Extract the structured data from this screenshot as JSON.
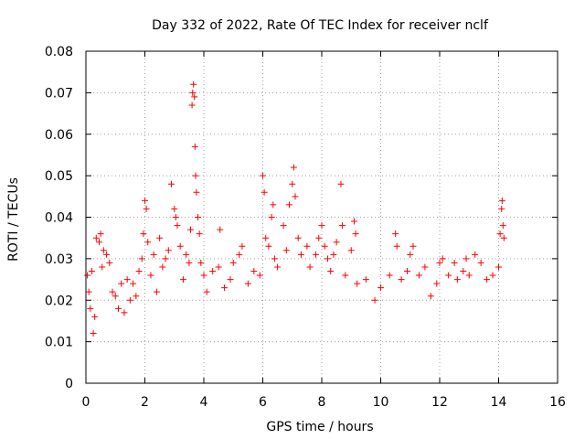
{
  "chart_data": {
    "type": "scatter",
    "title": "Day 332 of 2022, Rate Of TEC Index for receiver nclf",
    "xlabel": "GPS time / hours",
    "ylabel": "ROTI / TECUs",
    "xlim": [
      0,
      16
    ],
    "ylim": [
      0,
      0.08
    ],
    "x_ticks": [
      "0",
      "2",
      "4",
      "6",
      "8",
      "10",
      "12",
      "14",
      "16"
    ],
    "y_ticks": [
      "0",
      "0.01",
      "0.02",
      "0.03",
      "0.04",
      "0.05",
      "0.06",
      "0.07",
      "0.08"
    ],
    "grid": true,
    "marker": "+",
    "color": "#ff0000",
    "series": [
      {
        "name": "ROTI",
        "points": [
          [
            0.05,
            0.026
          ],
          [
            0.1,
            0.022
          ],
          [
            0.15,
            0.018
          ],
          [
            0.2,
            0.027
          ],
          [
            0.25,
            0.012
          ],
          [
            0.3,
            0.016
          ],
          [
            0.35,
            0.035
          ],
          [
            0.45,
            0.034
          ],
          [
            0.5,
            0.036
          ],
          [
            0.55,
            0.028
          ],
          [
            0.6,
            0.032
          ],
          [
            0.7,
            0.031
          ],
          [
            0.8,
            0.029
          ],
          [
            0.9,
            0.022
          ],
          [
            1.0,
            0.021
          ],
          [
            1.1,
            0.018
          ],
          [
            1.2,
            0.024
          ],
          [
            1.3,
            0.017
          ],
          [
            1.4,
            0.025
          ],
          [
            1.5,
            0.02
          ],
          [
            1.6,
            0.024
          ],
          [
            1.7,
            0.021
          ],
          [
            1.8,
            0.027
          ],
          [
            1.9,
            0.03
          ],
          [
            1.95,
            0.036
          ],
          [
            2.0,
            0.044
          ],
          [
            2.05,
            0.042
          ],
          [
            2.1,
            0.034
          ],
          [
            2.2,
            0.026
          ],
          [
            2.3,
            0.031
          ],
          [
            2.4,
            0.022
          ],
          [
            2.5,
            0.035
          ],
          [
            2.6,
            0.028
          ],
          [
            2.7,
            0.03
          ],
          [
            2.8,
            0.032
          ],
          [
            2.9,
            0.048
          ],
          [
            3.0,
            0.042
          ],
          [
            3.05,
            0.04
          ],
          [
            3.1,
            0.038
          ],
          [
            3.2,
            0.033
          ],
          [
            3.3,
            0.025
          ],
          [
            3.4,
            0.031
          ],
          [
            3.5,
            0.029
          ],
          [
            3.55,
            0.037
          ],
          [
            3.6,
            0.067
          ],
          [
            3.62,
            0.07
          ],
          [
            3.65,
            0.072
          ],
          [
            3.68,
            0.069
          ],
          [
            3.7,
            0.057
          ],
          [
            3.72,
            0.05
          ],
          [
            3.75,
            0.046
          ],
          [
            3.8,
            0.04
          ],
          [
            3.85,
            0.036
          ],
          [
            3.9,
            0.029
          ],
          [
            4.0,
            0.026
          ],
          [
            4.1,
            0.022
          ],
          [
            4.3,
            0.027
          ],
          [
            4.5,
            0.028
          ],
          [
            4.55,
            0.037
          ],
          [
            4.7,
            0.023
          ],
          [
            4.9,
            0.025
          ],
          [
            5.0,
            0.029
          ],
          [
            5.2,
            0.031
          ],
          [
            5.3,
            0.033
          ],
          [
            5.5,
            0.024
          ],
          [
            5.7,
            0.027
          ],
          [
            5.9,
            0.026
          ],
          [
            6.0,
            0.05
          ],
          [
            6.05,
            0.046
          ],
          [
            6.1,
            0.035
          ],
          [
            6.2,
            0.033
          ],
          [
            6.3,
            0.04
          ],
          [
            6.35,
            0.043
          ],
          [
            6.4,
            0.03
          ],
          [
            6.5,
            0.028
          ],
          [
            6.7,
            0.038
          ],
          [
            6.8,
            0.032
          ],
          [
            6.9,
            0.043
          ],
          [
            7.0,
            0.048
          ],
          [
            7.05,
            0.052
          ],
          [
            7.1,
            0.045
          ],
          [
            7.2,
            0.035
          ],
          [
            7.3,
            0.031
          ],
          [
            7.5,
            0.033
          ],
          [
            7.6,
            0.028
          ],
          [
            7.8,
            0.031
          ],
          [
            7.9,
            0.035
          ],
          [
            8.0,
            0.038
          ],
          [
            8.1,
            0.033
          ],
          [
            8.2,
            0.03
          ],
          [
            8.3,
            0.027
          ],
          [
            8.4,
            0.031
          ],
          [
            8.5,
            0.034
          ],
          [
            8.65,
            0.048
          ],
          [
            8.7,
            0.038
          ],
          [
            8.8,
            0.026
          ],
          [
            9.0,
            0.032
          ],
          [
            9.1,
            0.039
          ],
          [
            9.15,
            0.036
          ],
          [
            9.2,
            0.024
          ],
          [
            9.5,
            0.025
          ],
          [
            9.8,
            0.02
          ],
          [
            10.0,
            0.023
          ],
          [
            10.3,
            0.026
          ],
          [
            10.5,
            0.036
          ],
          [
            10.55,
            0.033
          ],
          [
            10.7,
            0.025
          ],
          [
            10.9,
            0.027
          ],
          [
            11.0,
            0.031
          ],
          [
            11.1,
            0.033
          ],
          [
            11.3,
            0.026
          ],
          [
            11.5,
            0.028
          ],
          [
            11.7,
            0.021
          ],
          [
            11.9,
            0.024
          ],
          [
            12.0,
            0.029
          ],
          [
            12.1,
            0.03
          ],
          [
            12.3,
            0.026
          ],
          [
            12.5,
            0.029
          ],
          [
            12.6,
            0.025
          ],
          [
            12.8,
            0.027
          ],
          [
            12.9,
            0.03
          ],
          [
            13.0,
            0.026
          ],
          [
            13.2,
            0.031
          ],
          [
            13.4,
            0.029
          ],
          [
            13.6,
            0.025
          ],
          [
            13.8,
            0.026
          ],
          [
            14.0,
            0.028
          ],
          [
            14.05,
            0.036
          ],
          [
            14.1,
            0.042
          ],
          [
            14.12,
            0.044
          ],
          [
            14.15,
            0.038
          ],
          [
            14.18,
            0.035
          ]
        ]
      }
    ]
  }
}
